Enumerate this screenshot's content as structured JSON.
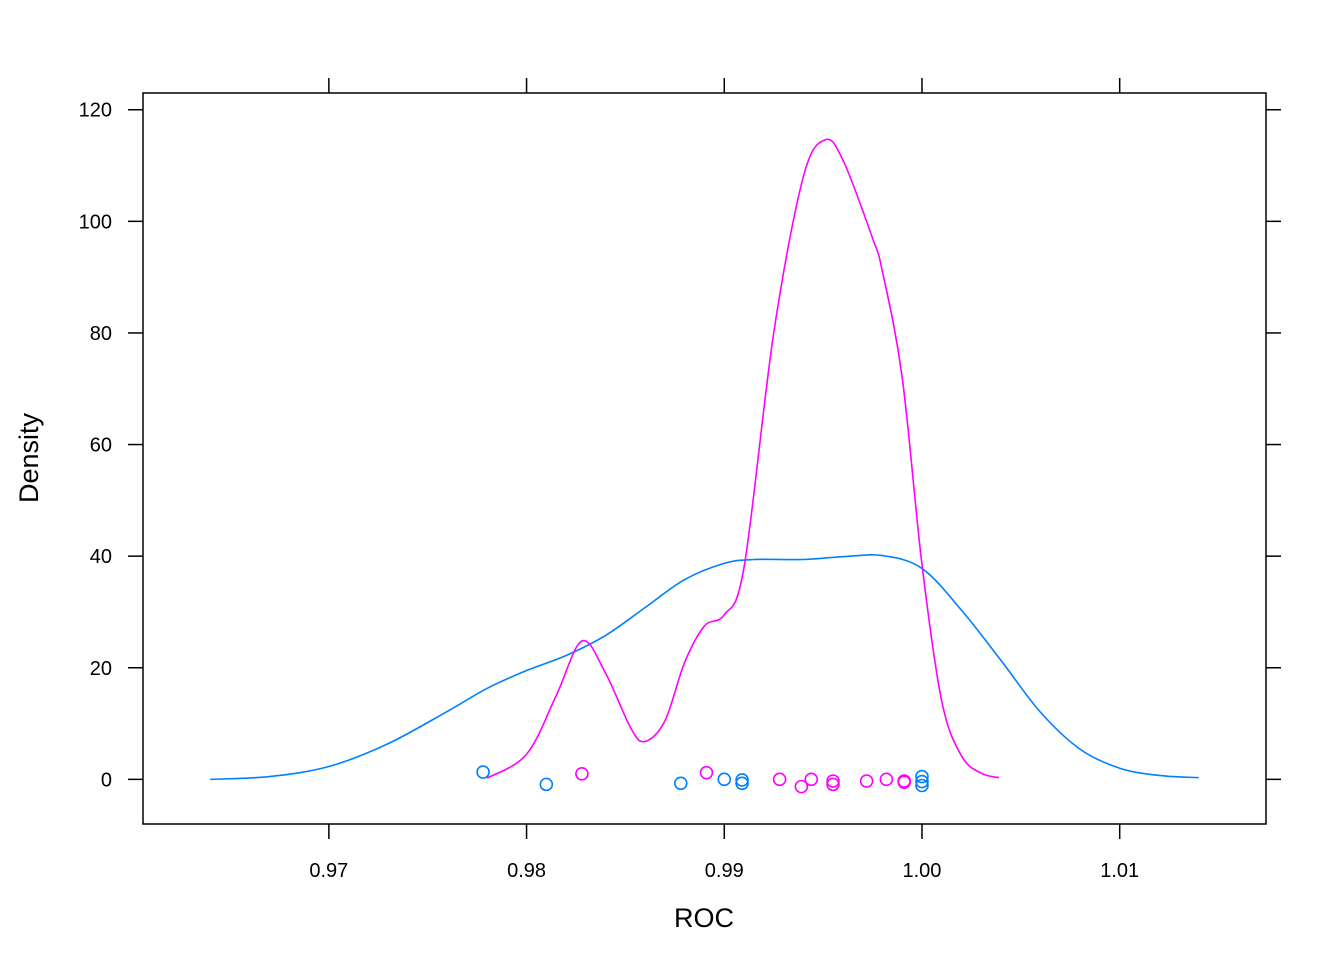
{
  "chart_data": {
    "type": "line",
    "title": "",
    "xlabel": "ROC",
    "ylabel": "Density",
    "xlim": [
      0.9606,
      1.0174
    ],
    "ylim": [
      -8,
      123
    ],
    "x_ticks": [
      0.97,
      0.98,
      0.99,
      1.0,
      1.01
    ],
    "x_tick_labels": [
      "0.97",
      "0.98",
      "0.99",
      "1.00",
      "1.01"
    ],
    "y_ticks": [
      0,
      20,
      40,
      60,
      80,
      100,
      120
    ],
    "y_tick_labels": [
      "0",
      "20",
      "40",
      "60",
      "80",
      "100",
      "120"
    ],
    "grid": false,
    "legend": "none",
    "series": [
      {
        "color": "#0080ff",
        "density": [
          [
            0.964,
            0.0
          ],
          [
            0.967,
            0.5
          ],
          [
            0.97,
            2.3
          ],
          [
            0.973,
            6.4
          ],
          [
            0.976,
            12.2
          ],
          [
            0.978,
            16.3
          ],
          [
            0.98,
            19.5
          ],
          [
            0.982,
            22.2
          ],
          [
            0.984,
            25.8
          ],
          [
            0.986,
            30.8
          ],
          [
            0.988,
            35.8
          ],
          [
            0.99,
            38.7
          ],
          [
            0.9915,
            39.4
          ],
          [
            0.994,
            39.4
          ],
          [
            0.996,
            39.9
          ],
          [
            0.998,
            40.1
          ],
          [
            1.0,
            37.8
          ],
          [
            1.002,
            30.3
          ],
          [
            1.004,
            21.3
          ],
          [
            1.006,
            12.0
          ],
          [
            1.008,
            5.4
          ],
          [
            1.01,
            2.0
          ],
          [
            1.012,
            0.7
          ],
          [
            1.014,
            0.3
          ]
        ],
        "points": [
          [
            0.9778,
            1.3
          ],
          [
            0.981,
            -0.9
          ],
          [
            0.9878,
            -0.7
          ],
          [
            0.99,
            0.0
          ],
          [
            0.9909,
            -0.1
          ],
          [
            0.9909,
            -0.7
          ],
          [
            1.0,
            0.5
          ],
          [
            1.0,
            -0.4
          ],
          [
            1.0,
            -1.1
          ]
        ]
      },
      {
        "color": "#ff00ff",
        "density": [
          [
            0.978,
            0.2
          ],
          [
            0.98,
            4.5
          ],
          [
            0.9815,
            15.0
          ],
          [
            0.9828,
            24.8
          ],
          [
            0.984,
            19.0
          ],
          [
            0.9853,
            9.0
          ],
          [
            0.986,
            6.8
          ],
          [
            0.987,
            10.5
          ],
          [
            0.988,
            21.0
          ],
          [
            0.989,
            27.5
          ],
          [
            0.99,
            29.5
          ],
          [
            0.991,
            38.0
          ],
          [
            0.9925,
            80.0
          ],
          [
            0.994,
            108.0
          ],
          [
            0.9951,
            114.6
          ],
          [
            0.996,
            111.0
          ],
          [
            0.9975,
            97.0
          ],
          [
            0.998,
            91.0
          ],
          [
            0.999,
            72.0
          ],
          [
            1.0,
            38.5
          ],
          [
            1.001,
            14.0
          ],
          [
            1.002,
            4.2
          ],
          [
            1.003,
            1.1
          ],
          [
            1.0039,
            0.3
          ]
        ],
        "points": [
          [
            0.9828,
            1.0
          ],
          [
            0.9891,
            1.2
          ],
          [
            0.9928,
            0.0
          ],
          [
            0.9939,
            -1.3
          ],
          [
            0.9944,
            0.0
          ],
          [
            0.9955,
            -0.3
          ],
          [
            0.9955,
            -0.9
          ],
          [
            0.9972,
            -0.3
          ],
          [
            0.9982,
            0.0
          ],
          [
            0.9991,
            -0.3
          ],
          [
            0.9991,
            -0.5
          ]
        ]
      }
    ]
  }
}
